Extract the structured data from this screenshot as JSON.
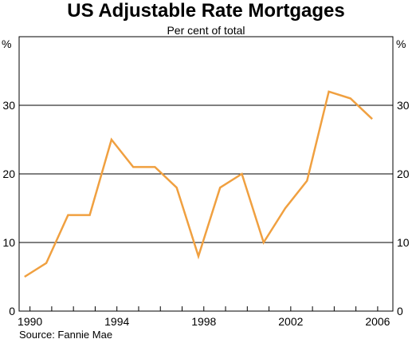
{
  "chart_data": {
    "type": "line",
    "title": "US Adjustable Rate Mortgages",
    "subtitle": "Per cent of total",
    "unit_left": "%",
    "unit_right": "%",
    "source": "Source: Fannie Mae",
    "grid": true,
    "ylim": [
      0,
      40
    ],
    "yticks": [
      0,
      10,
      20,
      30
    ],
    "xlim": [
      1989.5,
      2006.7
    ],
    "xticks": [
      1990,
      1994,
      1998,
      2002,
      2006
    ],
    "line_color": "#f0a040",
    "series": [
      {
        "x": [
          1989.75,
          1990.75,
          1991.75,
          1992.75,
          1993.75,
          1994.75,
          1995.75,
          1996.75,
          1997.75,
          1998.75,
          1999.75,
          2000.75,
          2001.75,
          2002.75,
          2003.75,
          2004.75,
          2005.75
        ],
        "values": [
          5,
          7,
          14,
          14,
          25,
          21,
          21,
          18,
          8,
          18,
          20,
          10,
          15,
          19,
          32,
          31,
          28
        ]
      }
    ]
  }
}
